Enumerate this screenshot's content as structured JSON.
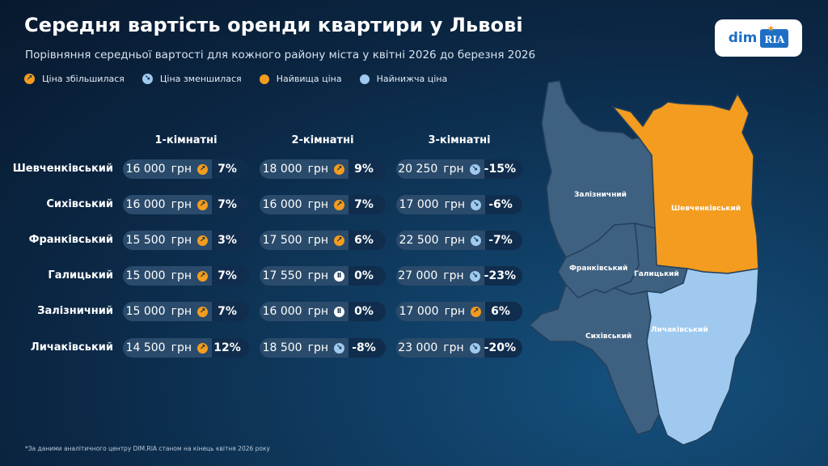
{
  "title": "Середня вартість оренди квартири у Львові",
  "subtitle": "Порівняння середньої вартості для кожного району міста у квітні 2026 до березня 2026",
  "logo": {
    "dim": "dim",
    "ria": "RIA"
  },
  "legend": [
    {
      "label": "Ціна збільшилася",
      "kind": "up"
    },
    {
      "label": "Ціна зменшилася",
      "kind": "down"
    },
    {
      "label": "Найвища ціна",
      "color": "#f39c1f"
    },
    {
      "label": "Найнижча ціна",
      "color": "#9fc9ef"
    }
  ],
  "chart_data": {
    "type": "table",
    "columns": [
      "1-кімнатні",
      "2-кімнатні",
      "3-кімнатні"
    ],
    "rows": [
      {
        "district": "Шевченківський",
        "cells": [
          {
            "price": "16 000",
            "unit": "грн",
            "change": "7%",
            "trend": "up"
          },
          {
            "price": "18 000",
            "unit": "грн",
            "change": "9%",
            "trend": "up"
          },
          {
            "price": "20 250",
            "unit": "грн",
            "change": "-15%",
            "trend": "down"
          }
        ]
      },
      {
        "district": "Сихівський",
        "cells": [
          {
            "price": "16 000",
            "unit": "грн",
            "change": "7%",
            "trend": "up"
          },
          {
            "price": "16 000",
            "unit": "грн",
            "change": "7%",
            "trend": "up"
          },
          {
            "price": "17 000",
            "unit": "грн",
            "change": "-6%",
            "trend": "down"
          }
        ]
      },
      {
        "district": "Франківський",
        "cells": [
          {
            "price": "15 500",
            "unit": "грн",
            "change": "3%",
            "trend": "up"
          },
          {
            "price": "17 500",
            "unit": "грн",
            "change": "6%",
            "trend": "up"
          },
          {
            "price": "22 500",
            "unit": "грн",
            "change": "-7%",
            "trend": "down"
          }
        ]
      },
      {
        "district": "Галицький",
        "cells": [
          {
            "price": "15 000",
            "unit": "грн",
            "change": "7%",
            "trend": "up"
          },
          {
            "price": "17 550",
            "unit": "грн",
            "change": "0%",
            "trend": "flat"
          },
          {
            "price": "27 000",
            "unit": "грн",
            "change": "-23%",
            "trend": "down"
          }
        ]
      },
      {
        "district": "Залізничний",
        "cells": [
          {
            "price": "15 000",
            "unit": "грн",
            "change": "7%",
            "trend": "up"
          },
          {
            "price": "16 000",
            "unit": "грн",
            "change": "0%",
            "trend": "flat"
          },
          {
            "price": "17 000",
            "unit": "грн",
            "change": "6%",
            "trend": "up"
          }
        ]
      },
      {
        "district": "Личаківський",
        "cells": [
          {
            "price": "14 500",
            "unit": "грн",
            "change": "12%",
            "trend": "up"
          },
          {
            "price": "18 500",
            "unit": "грн",
            "change": "-8%",
            "trend": "down"
          },
          {
            "price": "23 000",
            "unit": "грн",
            "change": "-20%",
            "trend": "down"
          }
        ]
      }
    ]
  },
  "map": {
    "highest_district": "Шевченківський",
    "lowest_district": "Личаківський",
    "colors": {
      "highest": "#f39c1f",
      "lowest": "#9fc9ef",
      "other": "#3f6181",
      "border": "#24405c"
    },
    "labels": [
      "Залізничний",
      "Шевченківський",
      "Франківський",
      "Галицький",
      "Сихівський",
      "Личаківський"
    ]
  },
  "footnote": "*За даними аналітичного центру DIM.RIA станом на кінець квітня 2026 року"
}
